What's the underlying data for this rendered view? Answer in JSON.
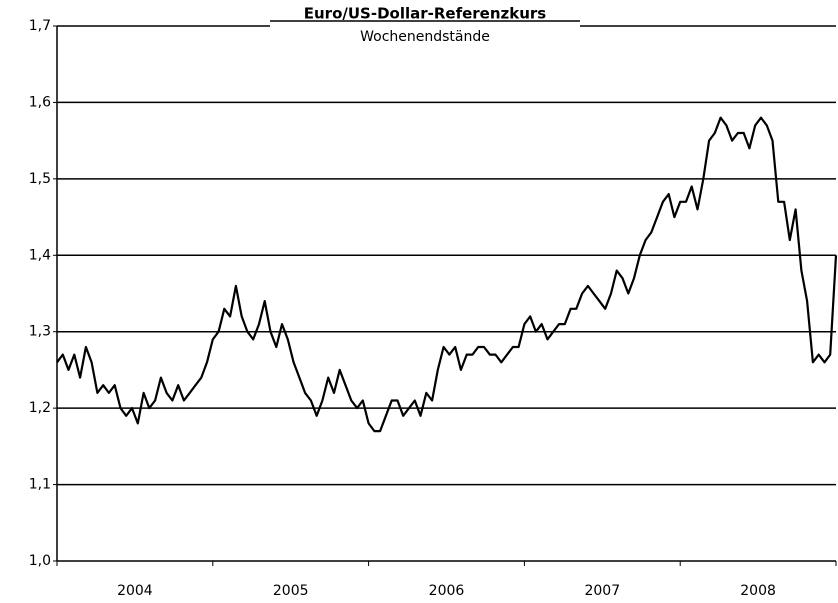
{
  "chart_data": {
    "type": "line",
    "title": "Euro/US-Dollar-Referenzkurs",
    "subtitle": "Wochenendstände",
    "x_labels": [
      "2004",
      "2005",
      "2006",
      "2007",
      "2008"
    ],
    "series": [
      {
        "name": "EUR/USD",
        "color": "#000000",
        "values": [
          1.26,
          1.27,
          1.25,
          1.27,
          1.24,
          1.28,
          1.26,
          1.22,
          1.23,
          1.22,
          1.23,
          1.2,
          1.19,
          1.2,
          1.18,
          1.22,
          1.2,
          1.21,
          1.24,
          1.22,
          1.21,
          1.23,
          1.21,
          1.22,
          1.23,
          1.24,
          1.26,
          1.29,
          1.3,
          1.33,
          1.32,
          1.36,
          1.32,
          1.3,
          1.29,
          1.31,
          1.34,
          1.3,
          1.28,
          1.31,
          1.29,
          1.26,
          1.24,
          1.22,
          1.21,
          1.19,
          1.21,
          1.24,
          1.22,
          1.25,
          1.23,
          1.21,
          1.2,
          1.21,
          1.18,
          1.17,
          1.17,
          1.19,
          1.21,
          1.21,
          1.19,
          1.2,
          1.21,
          1.19,
          1.22,
          1.21,
          1.25,
          1.28,
          1.27,
          1.28,
          1.25,
          1.27,
          1.27,
          1.28,
          1.28,
          1.27,
          1.27,
          1.26,
          1.27,
          1.28,
          1.28,
          1.31,
          1.32,
          1.3,
          1.31,
          1.29,
          1.3,
          1.31,
          1.31,
          1.33,
          1.33,
          1.35,
          1.36,
          1.35,
          1.34,
          1.33,
          1.35,
          1.38,
          1.37,
          1.35,
          1.37,
          1.4,
          1.42,
          1.43,
          1.45,
          1.47,
          1.48,
          1.45,
          1.47,
          1.47,
          1.49,
          1.46,
          1.5,
          1.55,
          1.56,
          1.58,
          1.57,
          1.55,
          1.56,
          1.56,
          1.54,
          1.57,
          1.58,
          1.57,
          1.55,
          1.47,
          1.47,
          1.42,
          1.46,
          1.38,
          1.34,
          1.26,
          1.27,
          1.26,
          1.27,
          1.4
        ]
      }
    ],
    "ylim": [
      1.0,
      1.7
    ],
    "yticks": [
      {
        "value": 1.0,
        "label": "1,0"
      },
      {
        "value": 1.1,
        "label": "1,1"
      },
      {
        "value": 1.2,
        "label": "1,2"
      },
      {
        "value": 1.3,
        "label": "1,3"
      },
      {
        "value": 1.4,
        "label": "1,4"
      },
      {
        "value": 1.5,
        "label": "1,5"
      },
      {
        "value": 1.6,
        "label": "1,6"
      },
      {
        "value": 1.7,
        "label": "1,7"
      }
    ],
    "grid": true
  }
}
